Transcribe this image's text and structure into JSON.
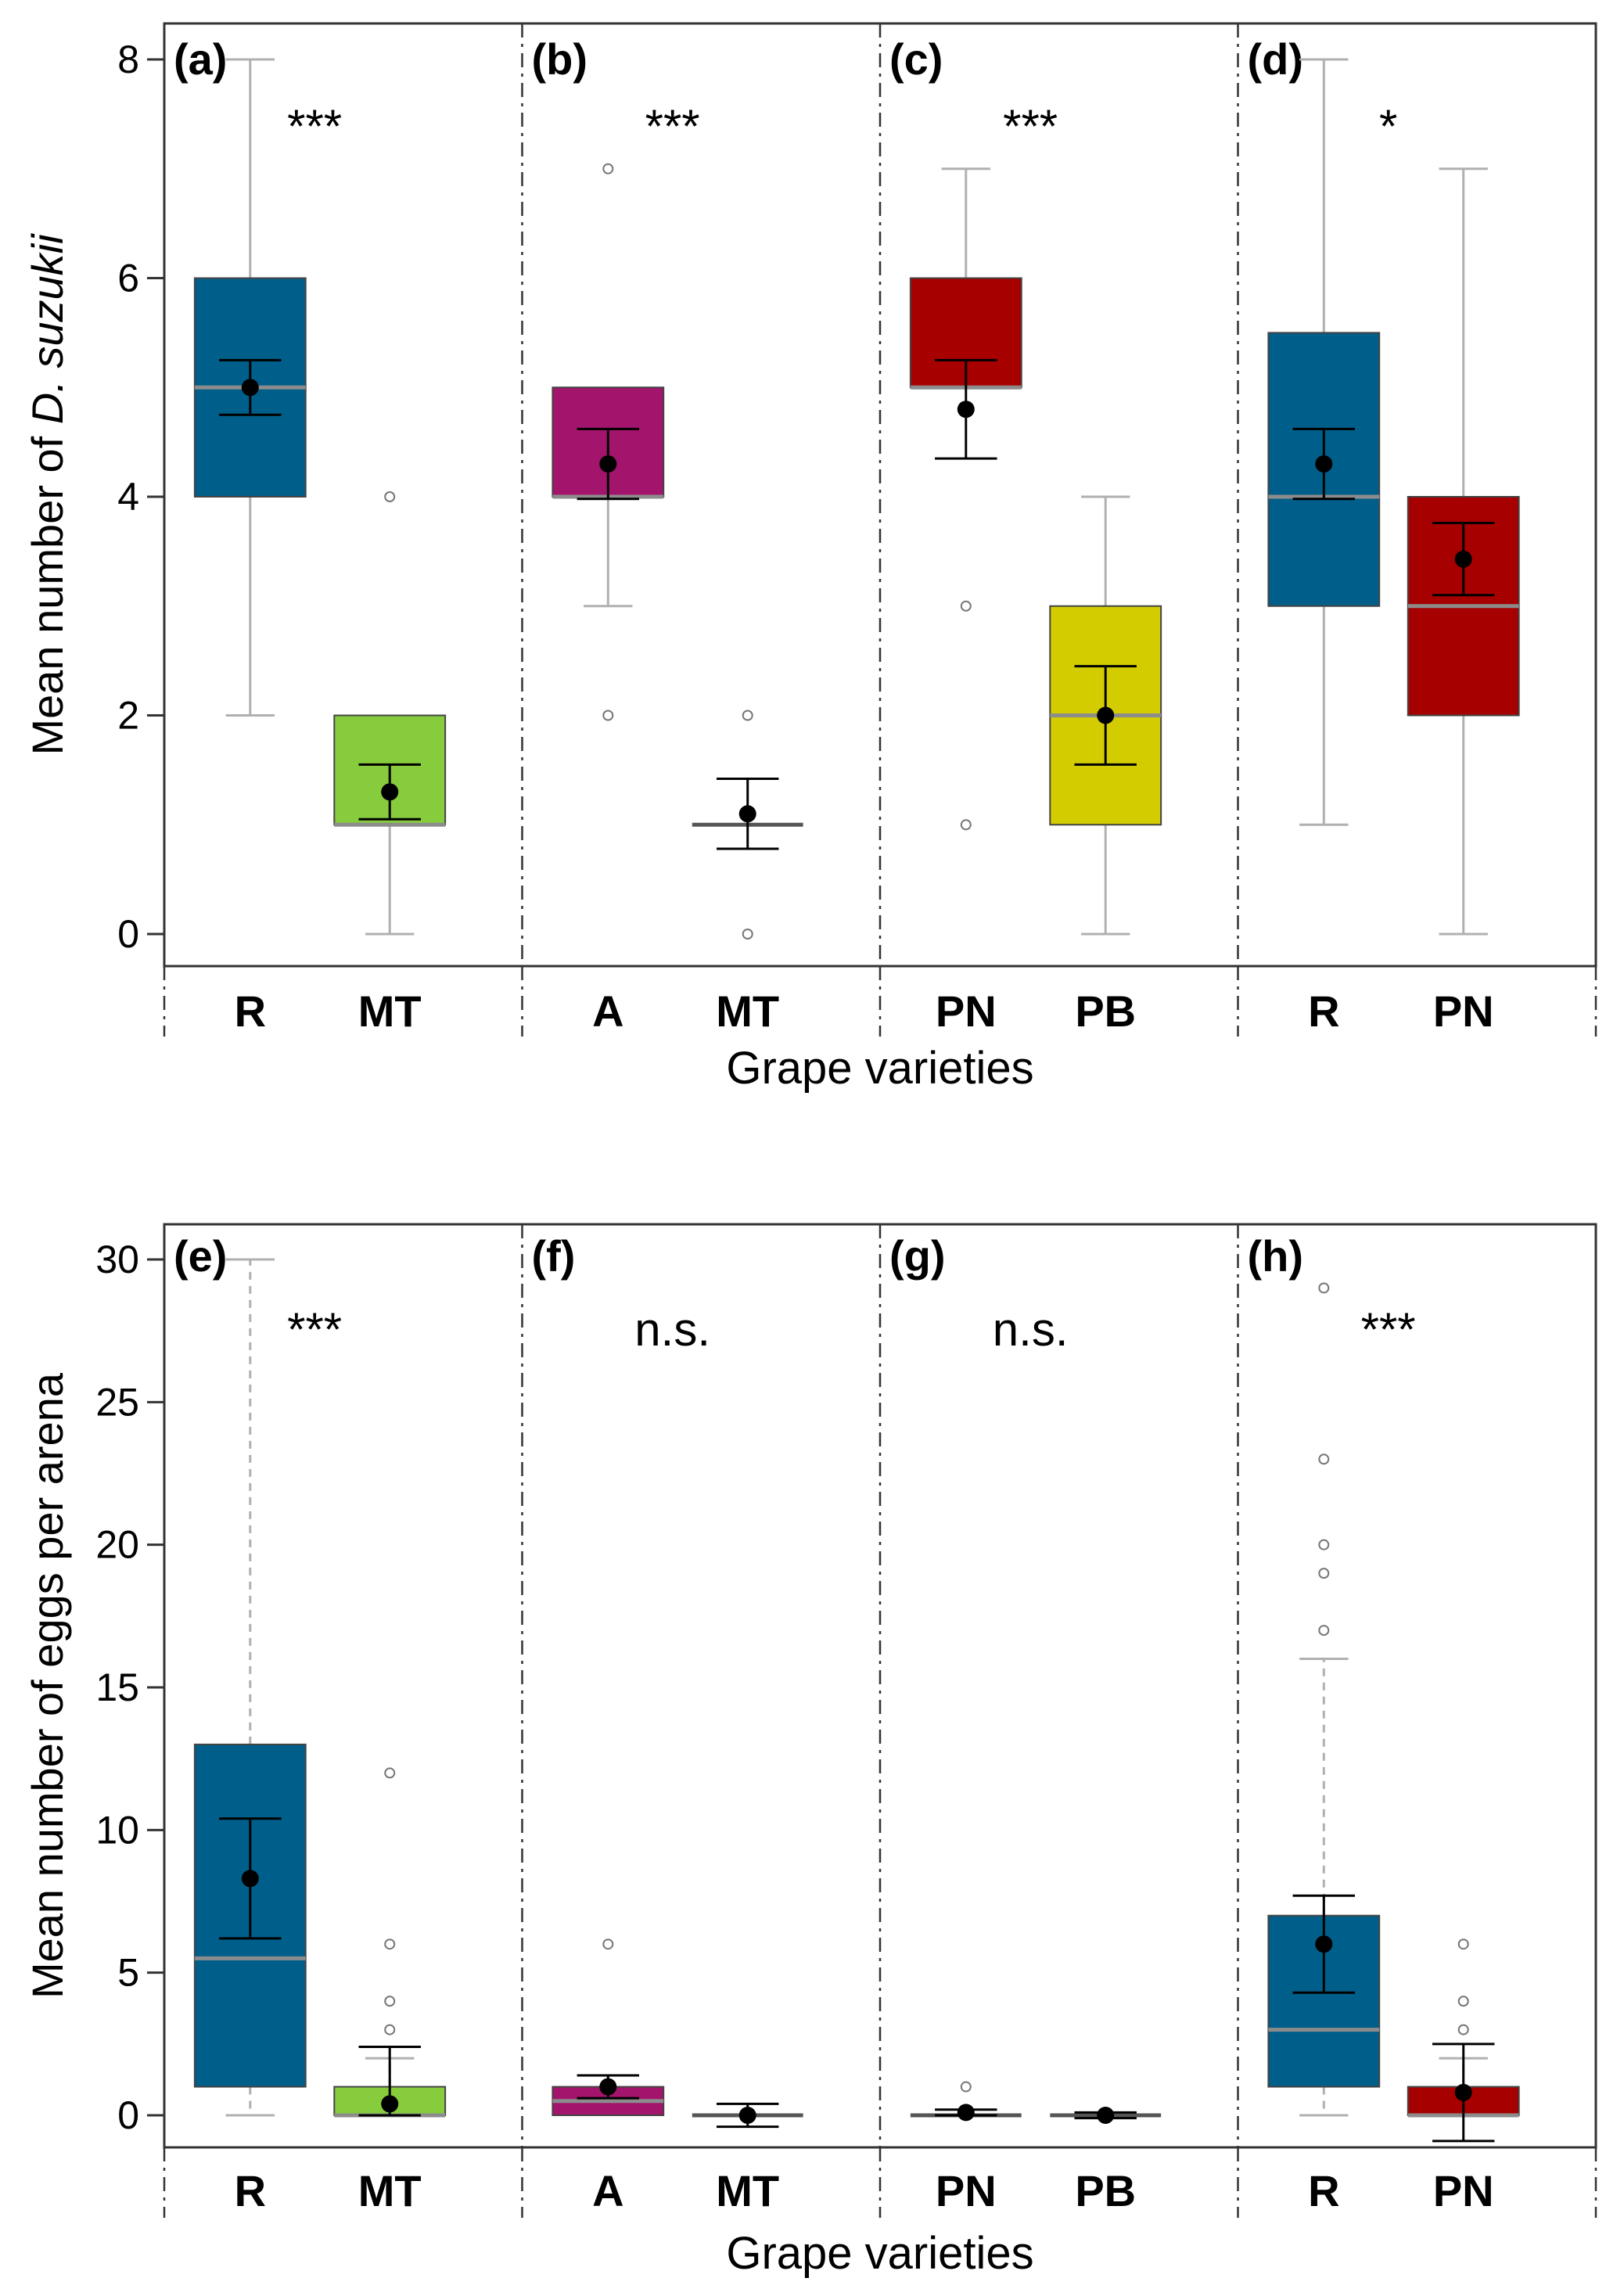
{
  "colors": {
    "R": "#005f8a",
    "MT": "#86cc3c",
    "A": "#a3146c",
    "PN": "#a70000",
    "PB": "#d2cc00",
    "median": "#8c8c8c",
    "whisker": "#b0b0b0",
    "frame": "#333333"
  },
  "chart_data": [
    {
      "type": "box",
      "ylabel_prefix": "Mean number of ",
      "ylabel_italic": "D. suzukii",
      "xlabel": "Grape varieties",
      "ylim": [
        0,
        8
      ],
      "yticks": [
        "0",
        "2",
        "4",
        "6",
        "8"
      ],
      "tick_values": [
        0,
        2,
        4,
        6,
        8
      ],
      "whisker_style": "solid",
      "panels": [
        {
          "label": "(a)",
          "significance": "***",
          "groups": [
            {
              "name": "R",
              "color_key": "R",
              "whisker_low": 2,
              "q1": 4,
              "median": 5,
              "q3": 6,
              "whisker_high": 8,
              "mean": 5.0,
              "se_low": 4.75,
              "se_high": 5.25,
              "outliers": []
            },
            {
              "name": "MT",
              "color_key": "MT",
              "whisker_low": 0,
              "q1": 1,
              "median": 1,
              "q3": 2,
              "whisker_high": 2,
              "mean": 1.3,
              "se_low": 1.05,
              "se_high": 1.55,
              "outliers": [
                4
              ]
            }
          ]
        },
        {
          "label": "(b)",
          "significance": "***",
          "groups": [
            {
              "name": "A",
              "color_key": "A",
              "whisker_low": 3,
              "q1": 4,
              "median": 4,
              "q3": 5,
              "whisker_high": 5,
              "mean": 4.3,
              "se_low": 3.98,
              "se_high": 4.62,
              "outliers": [
                2,
                7
              ]
            },
            {
              "name": "MT",
              "color_key": "MT",
              "whisker_low": 1,
              "q1": 1,
              "median": 1,
              "q3": 1,
              "whisker_high": 1,
              "mean": 1.1,
              "se_low": 0.78,
              "se_high": 1.42,
              "outliers": [
                0,
                2
              ],
              "no_fill": true
            }
          ]
        },
        {
          "label": "(c)",
          "significance": "***",
          "groups": [
            {
              "name": "PN",
              "color_key": "PN",
              "whisker_low": 5,
              "q1": 5,
              "median": 5,
              "q3": 6,
              "whisker_high": 7,
              "mean": 4.8,
              "se_low": 4.35,
              "se_high": 5.25,
              "outliers": [
                1,
                3
              ]
            },
            {
              "name": "PB",
              "color_key": "PB",
              "whisker_low": 0,
              "q1": 1,
              "median": 2,
              "q3": 3,
              "whisker_high": 4,
              "mean": 2.0,
              "se_low": 1.55,
              "se_high": 2.45,
              "outliers": []
            }
          ]
        },
        {
          "label": "(d)",
          "significance": "*",
          "groups": [
            {
              "name": "R",
              "color_key": "R",
              "whisker_low": 1,
              "q1": 3,
              "median": 4,
              "q3": 5.5,
              "whisker_high": 8,
              "mean": 4.3,
              "se_low": 3.98,
              "se_high": 4.62,
              "outliers": []
            },
            {
              "name": "PN",
              "color_key": "PN",
              "whisker_low": 0,
              "q1": 2,
              "median": 3,
              "q3": 4,
              "whisker_high": 7,
              "mean": 3.43,
              "se_low": 3.1,
              "se_high": 3.76,
              "outliers": []
            }
          ]
        }
      ]
    },
    {
      "type": "box",
      "ylabel_prefix": "Mean number of eggs per arena",
      "ylabel_italic": "",
      "xlabel": "Grape varieties",
      "ylim": [
        0,
        30
      ],
      "yticks": [
        "0",
        "5",
        "10",
        "15",
        "20",
        "25",
        "30"
      ],
      "tick_values": [
        0,
        5,
        10,
        15,
        20,
        25,
        30
      ],
      "whisker_style": "dashed",
      "panels": [
        {
          "label": "(e)",
          "significance": "***",
          "groups": [
            {
              "name": "R",
              "color_key": "R",
              "whisker_low": 0,
              "q1": 1,
              "median": 5.5,
              "q3": 13,
              "whisker_high": 30,
              "mean": 8.3,
              "se_low": 6.2,
              "se_high": 10.4,
              "outliers": []
            },
            {
              "name": "MT",
              "color_key": "MT",
              "whisker_low": 0,
              "q1": 0,
              "median": 0,
              "q3": 1,
              "whisker_high": 2,
              "mean": 0.4,
              "se_low": 0,
              "se_high": 2.4,
              "outliers": [
                3,
                4,
                6,
                12
              ]
            }
          ]
        },
        {
          "label": "(f)",
          "significance": "n.s.",
          "groups": [
            {
              "name": "A",
              "color_key": "A",
              "whisker_low": 0,
              "q1": 0,
              "median": 0.5,
              "q3": 1,
              "whisker_high": 1,
              "mean": 1.0,
              "se_low": 0.6,
              "se_high": 1.4,
              "outliers": [
                6
              ]
            },
            {
              "name": "MT",
              "color_key": "MT",
              "whisker_low": 0,
              "q1": 0,
              "median": 0,
              "q3": 0,
              "whisker_high": 0,
              "mean": 0.0,
              "se_low": -0.4,
              "se_high": 0.4,
              "outliers": [],
              "no_fill": true
            }
          ]
        },
        {
          "label": "(g)",
          "significance": "n.s.",
          "groups": [
            {
              "name": "PN",
              "color_key": "PN",
              "whisker_low": 0,
              "q1": 0,
              "median": 0,
              "q3": 0,
              "whisker_high": 0,
              "mean": 0.1,
              "se_low": 0.0,
              "se_high": 0.2,
              "outliers": [
                1
              ],
              "no_fill": true
            },
            {
              "name": "PB",
              "color_key": "PB",
              "whisker_low": 0,
              "q1": 0,
              "median": 0,
              "q3": 0,
              "whisker_high": 0,
              "mean": 0.0,
              "se_low": -0.1,
              "se_high": 0.1,
              "outliers": [],
              "no_fill": true
            }
          ]
        },
        {
          "label": "(h)",
          "significance": "***",
          "groups": [
            {
              "name": "R",
              "color_key": "R",
              "whisker_low": 0,
              "q1": 1,
              "median": 3,
              "q3": 7,
              "whisker_high": 16,
              "mean": 6.0,
              "se_low": 4.3,
              "se_high": 7.7,
              "outliers": [
                17,
                19,
                20,
                23,
                29
              ]
            },
            {
              "name": "PN",
              "color_key": "PN",
              "whisker_low": 0,
              "q1": 0,
              "median": 0,
              "q3": 1,
              "whisker_high": 2,
              "mean": 0.8,
              "se_low": -0.9,
              "se_high": 2.5,
              "outliers": [
                3,
                4,
                6
              ]
            }
          ]
        }
      ]
    }
  ]
}
